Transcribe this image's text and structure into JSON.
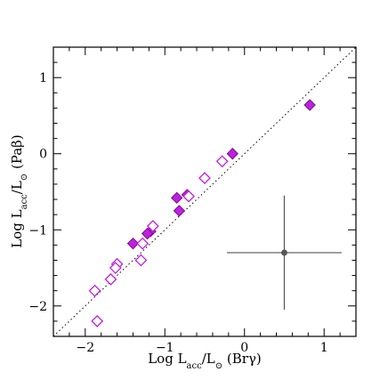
{
  "chart_data": {
    "type": "scatter",
    "xlabel": "Log L",
    "xlabel_sub": "acc",
    "xlabel_mid": "/L",
    "xlabel_sun": "⊙",
    "xlabel_tail": " (Brγ)",
    "ylabel": "Log L",
    "ylabel_sub": "acc",
    "ylabel_mid": "/L",
    "ylabel_sun": "⊙",
    "ylabel_tail": " (Paβ)",
    "xlim": [
      -2.4,
      1.4
    ],
    "ylim": [
      -2.4,
      1.4
    ],
    "x_ticks": [
      -2,
      -1,
      0,
      1
    ],
    "x_tick_labels": [
      "−2",
      "−1",
      "0",
      "1"
    ],
    "y_ticks": [
      -2,
      -1,
      0,
      1
    ],
    "y_tick_labels": [
      "−2",
      "−1",
      "0",
      "1"
    ],
    "x_minor_step": 0.2,
    "y_minor_step": 0.2,
    "grid": false,
    "reference_line": {
      "style": "dotted",
      "slope": 1,
      "intercept": 0
    },
    "colors": {
      "marker": "#c020e0",
      "marker_edge": "#7a1090",
      "errorbar": "#555555",
      "frame": "#000000"
    },
    "series": [
      {
        "marker": "filled-diamond",
        "points": [
          [
            0.82,
            0.64
          ],
          [
            -0.15,
            0.0
          ],
          [
            -0.72,
            -0.54
          ],
          [
            -0.85,
            -0.58
          ],
          [
            -0.82,
            -0.75
          ],
          [
            -1.18,
            -1.02
          ],
          [
            -1.22,
            -1.05
          ],
          [
            -1.4,
            -1.18
          ]
        ]
      },
      {
        "marker": "open-diamond",
        "points": [
          [
            -0.28,
            -0.1
          ],
          [
            -0.5,
            -0.32
          ],
          [
            -0.7,
            -0.56
          ],
          [
            -1.15,
            -0.95
          ],
          [
            -1.28,
            -1.18
          ],
          [
            -1.6,
            -1.45
          ],
          [
            -1.62,
            -1.5
          ],
          [
            -1.68,
            -1.65
          ],
          [
            -1.3,
            -1.4
          ],
          [
            -1.88,
            -1.8
          ],
          [
            -1.85,
            -2.2
          ]
        ]
      }
    ],
    "error_bar_example": {
      "x": 0.5,
      "y": -1.3,
      "x_err": 0.72,
      "y_err": 0.75
    }
  }
}
